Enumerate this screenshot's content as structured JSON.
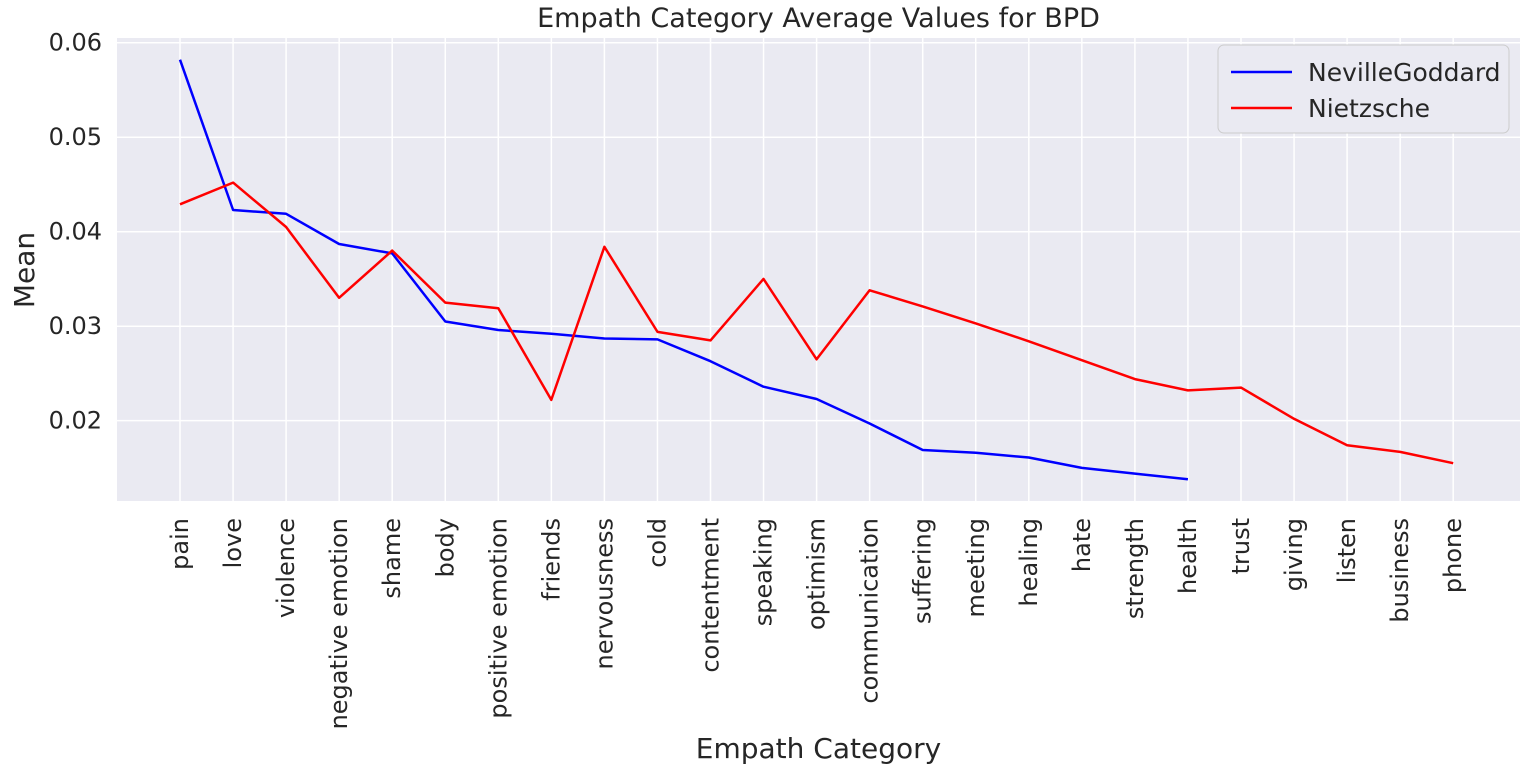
{
  "chart_data": {
    "type": "line",
    "title": "Empath Category Average Values for BPD",
    "xlabel": "Empath Category",
    "ylabel": "Mean",
    "ylim": [
      0.0115,
      0.0605
    ],
    "yticks": [
      0.02,
      0.03,
      0.04,
      0.05,
      0.06
    ],
    "ytick_labels": [
      "0.02",
      "0.03",
      "0.04",
      "0.05",
      "0.06"
    ],
    "grid": true,
    "legend_position": "top-right",
    "categories": [
      "pain",
      "love",
      "violence",
      "negative emotion",
      "shame",
      "body",
      "positive emotion",
      "friends",
      "nervousness",
      "cold",
      "contentment",
      "speaking",
      "optimism",
      "communication",
      "suffering",
      "meeting",
      "healing",
      "hate",
      "strength",
      "health",
      "trust",
      "giving",
      "listen",
      "business",
      "phone"
    ],
    "series": [
      {
        "name": "NevilleGoddard",
        "color": "#0000ff",
        "values": [
          0.0582,
          0.0423,
          0.0419,
          0.0387,
          0.0377,
          0.0305,
          0.0296,
          0.0292,
          0.0287,
          0.0286,
          0.0263,
          0.0236,
          0.0223,
          0.0197,
          0.0169,
          0.0166,
          0.0161,
          0.015,
          0.0144,
          0.0138,
          null,
          null,
          null,
          null,
          null
        ]
      },
      {
        "name": "Nietzsche",
        "color": "#ff0000",
        "values": [
          0.0429,
          0.0452,
          0.0405,
          0.033,
          0.038,
          0.0325,
          0.0319,
          0.0222,
          0.0384,
          0.0294,
          0.0285,
          0.035,
          0.0265,
          0.0338,
          0.0321,
          0.0303,
          0.0284,
          0.0264,
          0.0244,
          0.0232,
          0.0235,
          0.0202,
          0.0174,
          0.0167,
          0.0155
        ]
      }
    ]
  }
}
